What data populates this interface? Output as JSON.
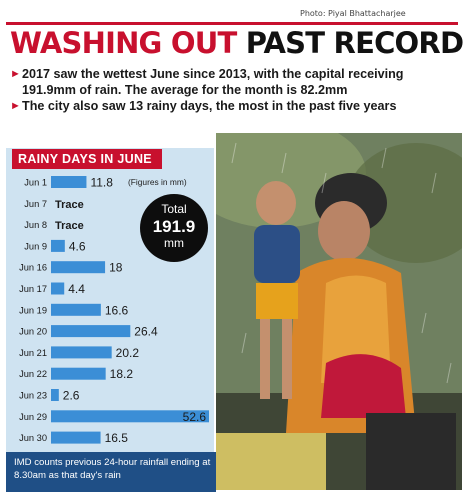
{
  "credit": "Photo: Piyal Bhattacharjee",
  "headline": {
    "part1": "WASHING OUT ",
    "part2": "PAST RECORD"
  },
  "bullets": [
    "2017 saw the wettest June since 2013, with the capital receiving 191.9mm of rain. The average for the month is 82.2mm",
    "The city also saw 13 rainy days, the most in the past five years"
  ],
  "panel": {
    "title": "RAINY DAYS IN JUNE",
    "note": "(Figures in mm)"
  },
  "total": {
    "label": "Total",
    "value": "191.9",
    "unit": "mm"
  },
  "footer": "IMD counts previous 24-hour rainfall ending at 8.30am as that day's rain",
  "colors": {
    "bar": "#3b8ed6",
    "accent": "#c8102e",
    "panel": "#cfe3f1",
    "footer": "#1f4f86"
  },
  "chart_data": {
    "type": "bar",
    "orientation": "horizontal",
    "title": "RAINY DAYS IN JUNE",
    "categories": [
      "Jun 1",
      "Jun 7",
      "Jun 8",
      "Jun 9",
      "Jun 16",
      "Jun 17",
      "Jun 19",
      "Jun 20",
      "Jun 21",
      "Jun 22",
      "Jun 23",
      "Jun 29",
      "Jun 30"
    ],
    "values": [
      11.8,
      null,
      null,
      4.6,
      18,
      4.4,
      16.6,
      26.4,
      20.2,
      18.2,
      2.6,
      52.6,
      16.5
    ],
    "value_labels": [
      "11.8",
      "Trace",
      "Trace",
      "4.6",
      "18",
      "4.4",
      "16.6",
      "26.4",
      "20.2",
      "18.2",
      "2.6",
      "52.6",
      "16.5"
    ],
    "unit": "mm",
    "xlim": [
      0,
      52.6
    ],
    "grid": false
  }
}
